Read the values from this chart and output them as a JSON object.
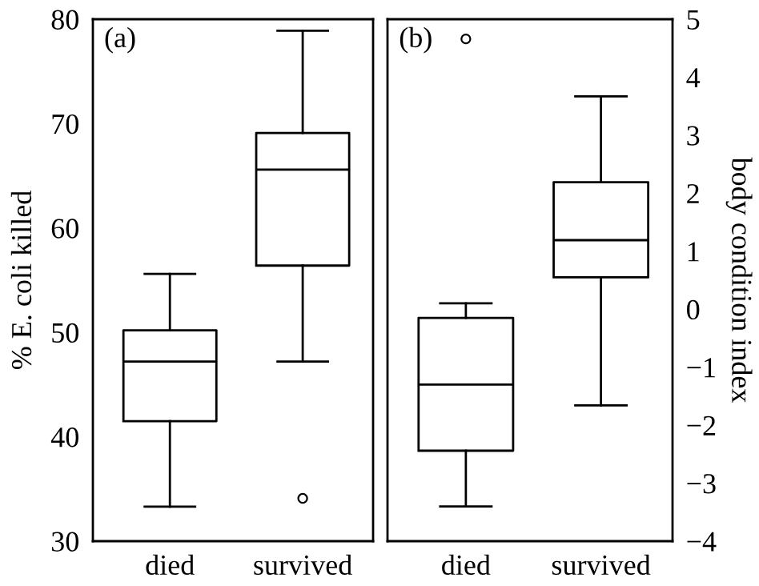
{
  "chart_data": [
    {
      "type": "box",
      "categories": [
        "died",
        "survived"
      ],
      "ylabel": "% E. coli killed",
      "ylim": [
        30,
        80
      ],
      "yticks": [
        30,
        40,
        50,
        60,
        70,
        80
      ],
      "annotations": [
        "(a)"
      ],
      "boxes": [
        {
          "low": 33.3,
          "q1": 41.5,
          "median": 47.2,
          "q3": 50.2,
          "high": 55.6
        },
        {
          "low": 47.2,
          "q1": 56.4,
          "median": 65.6,
          "q3": 69.1,
          "high": 78.9,
          "outliers": [
            34.1
          ]
        }
      ]
    },
    {
      "type": "box",
      "categories": [
        "died",
        "survived"
      ],
      "y2label": "body condition index",
      "y2lim": [
        -4,
        5
      ],
      "y2ticks": [
        -4,
        -3,
        -2,
        -1,
        0,
        1,
        2,
        3,
        4,
        5
      ],
      "annotations": [
        "(b)"
      ],
      "series": [
        {
          "axis": "y2",
          "boxes": [
            {
              "low": -3.4,
              "q1": -2.44,
              "median": -1.3,
              "q3": -0.15,
              "high": 0.1,
              "outliers": [
                4.66
              ]
            },
            {
              "low": -1.66,
              "q1": 0.55,
              "median": 1.19,
              "q3": 2.19,
              "high": 3.67
            }
          ]
        }
      ]
    }
  ]
}
